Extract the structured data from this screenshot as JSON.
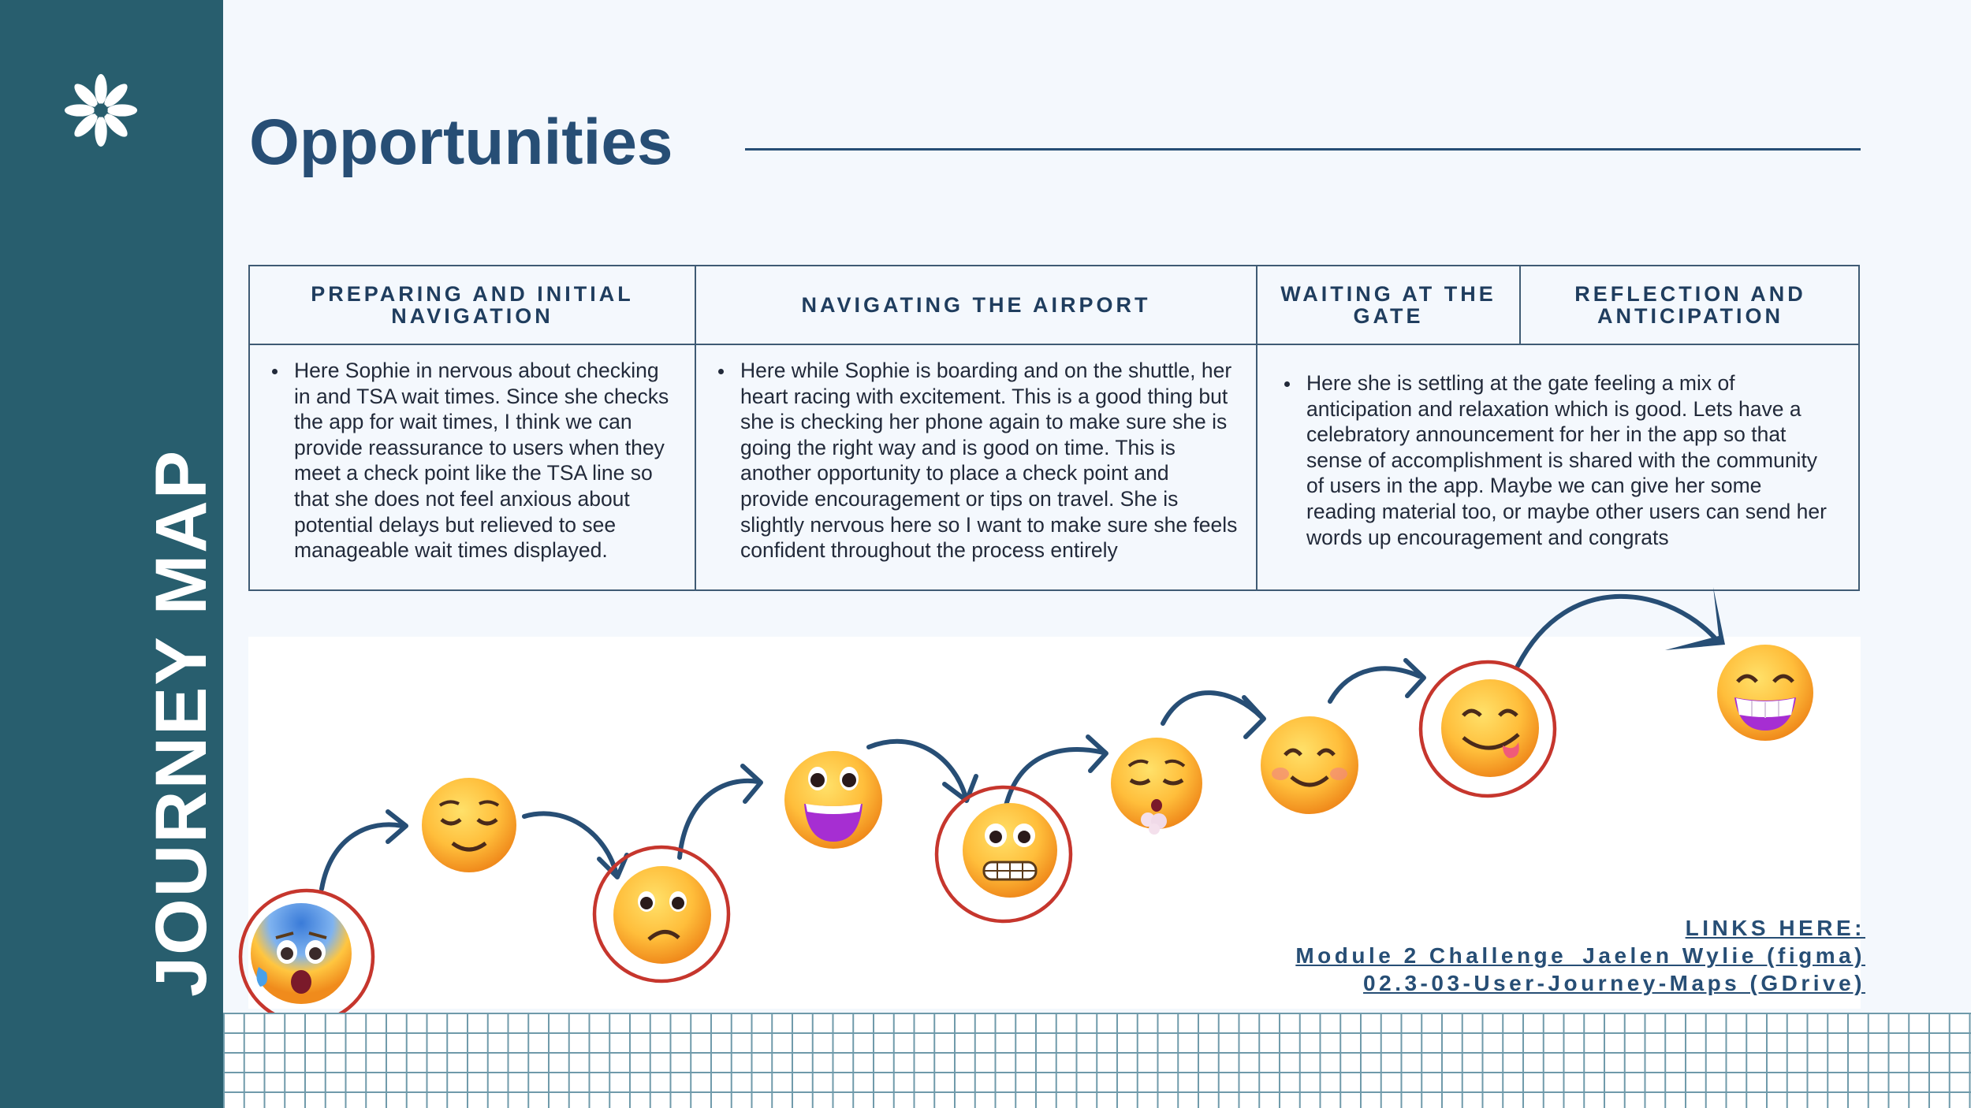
{
  "sidebar": {
    "title": "JOURNEY MAP",
    "logo_icon": "asterisk-flower-icon"
  },
  "page": {
    "title": "Opportunities"
  },
  "table": {
    "headers": [
      "PREPARING AND INITIAL NAVIGATION",
      "NAVIGATING THE AIRPORT",
      "WAITING AT THE GATE",
      "REFLECTION AND ANTICIPATION"
    ],
    "cells": [
      "Here Sophie in nervous about checking in and TSA wait times. Since she checks the app for wait times, I think we can provide reassurance to users when they meet a check point like the TSA line so that she does not feel anxious about potential delays but relieved to see manageable wait times displayed.",
      "Here while Sophie is boarding and on the shuttle, her heart racing with excitement. This is a good thing but she is checking her phone again to make sure she is going the right way and is good on time. This is another opportunity to place a check point and provide encouragement or tips on travel. She is slightly nervous here so I want to make sure she feels confident throughout the process entirely",
      "Here she is settling at the gate feeling a mix of anticipation and relaxation which is good. Lets have a celebratory announcement for her in the app so that sense of accomplishment is shared with the community of users in the app. Maybe we can give her some reading material too, or maybe other users can send her words up encouragement and congrats"
    ]
  },
  "journey": {
    "emotions": [
      {
        "name": "anxious-sweat",
        "icon": "anxious-face-with-sweat-icon",
        "highlighted": true
      },
      {
        "name": "relieved",
        "icon": "relieved-face-icon",
        "highlighted": false
      },
      {
        "name": "frowning",
        "icon": "slightly-frowning-face-icon",
        "highlighted": true
      },
      {
        "name": "grinning",
        "icon": "grinning-face-big-eyes-icon",
        "highlighted": false
      },
      {
        "name": "grimacing",
        "icon": "grimacing-face-icon",
        "highlighted": true
      },
      {
        "name": "exhaling",
        "icon": "face-exhaling-icon",
        "highlighted": false
      },
      {
        "name": "smiling",
        "icon": "smiling-face-icon",
        "highlighted": false
      },
      {
        "name": "savoring",
        "icon": "face-savoring-food-icon",
        "highlighted": true
      },
      {
        "name": "beaming",
        "icon": "beaming-face-icon",
        "highlighted": false
      }
    ],
    "accent_color": "#c6362d",
    "arrow_color": "#274e75"
  },
  "links": {
    "heading": "LINKS HERE:",
    "items": [
      "Module 2 Challenge_Jaelen Wylie (figma)",
      "02.3-03-User-Journey-Maps (GDrive)"
    ]
  }
}
